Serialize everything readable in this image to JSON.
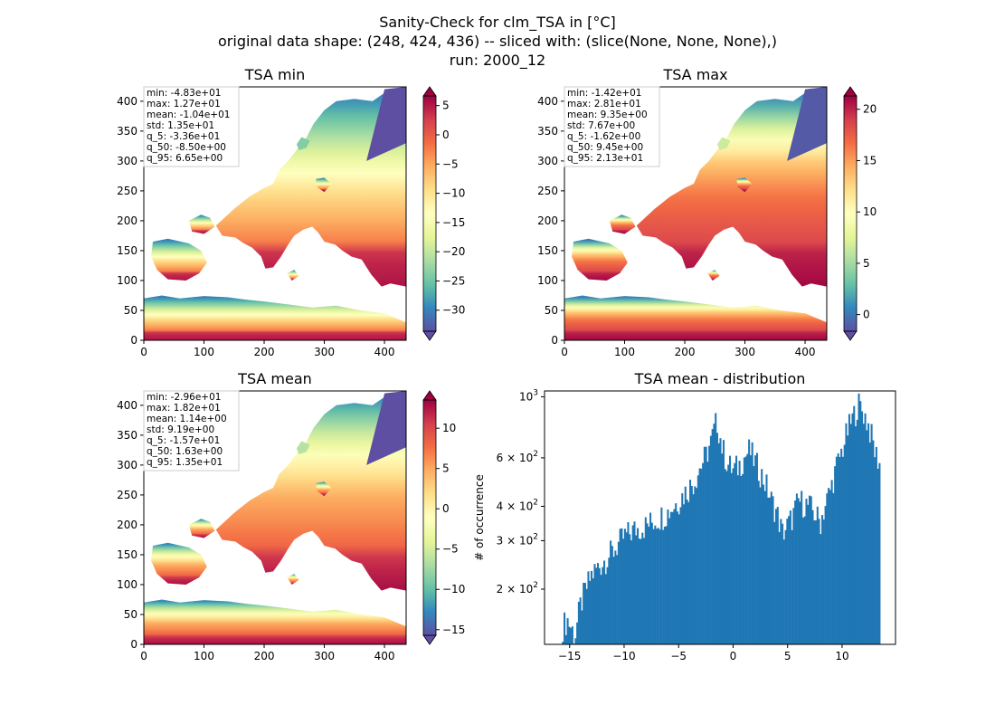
{
  "figure": {
    "title_lines": [
      "Sanity-Check for clm_TSA in [°C]",
      "original data shape: (248, 424, 436) -- sliced with: (slice(None, None, None),)",
      "run: 2000_12"
    ]
  },
  "colormap": [
    "#5e4fa2",
    "#3288bd",
    "#66c2a5",
    "#abdda4",
    "#e6f598",
    "#ffffbf",
    "#fee08b",
    "#fdae61",
    "#f46d43",
    "#d53e4f",
    "#9e0142"
  ],
  "ocean_color": "#ffffff",
  "hist_color": "#1f77b4",
  "chart_data": [
    {
      "type": "heatmap",
      "title": "TSA min",
      "x_ticks": [
        "0",
        "100",
        "200",
        "300",
        "400"
      ],
      "y_ticks": [
        "0",
        "50",
        "100",
        "150",
        "200",
        "250",
        "300",
        "350",
        "400"
      ],
      "xlim": [
        0,
        436
      ],
      "ylim": [
        0,
        424
      ],
      "colorbar": {
        "min": -33.6,
        "max": 6.65,
        "ticks": [
          5,
          0,
          -5,
          -10,
          -15,
          -20,
          -25,
          -30
        ],
        "tick_labels": [
          "5",
          "0",
          "−5",
          "−10",
          "−15",
          "−20",
          "−25",
          "−30"
        ],
        "extend": "both"
      },
      "stats": [
        "min: -4.83e+01",
        "max: 1.27e+01",
        "mean: -1.04e+01",
        "std: 1.35e+01",
        "q_5: -3.36e+01",
        "q_50: -8.50e+00",
        "q_95: 6.65e+00"
      ]
    },
    {
      "type": "heatmap",
      "title": "TSA max",
      "x_ticks": [
        "0",
        "100",
        "200",
        "300",
        "400"
      ],
      "y_ticks": [
        "0",
        "50",
        "100",
        "150",
        "200",
        "250",
        "300",
        "350",
        "400"
      ],
      "xlim": [
        0,
        436
      ],
      "ylim": [
        0,
        424
      ],
      "colorbar": {
        "min": -1.62,
        "max": 21.3,
        "ticks": [
          20,
          15,
          10,
          5,
          0
        ],
        "tick_labels": [
          "20",
          "15",
          "10",
          "5",
          "0"
        ],
        "extend": "both"
      },
      "stats": [
        "min: -1.42e+01",
        "max: 2.81e+01",
        "mean: 9.35e+00",
        "std: 7.67e+00",
        "q_5: -1.62e+00",
        "q_50: 9.45e+00",
        "q_95: 2.13e+01"
      ]
    },
    {
      "type": "heatmap",
      "title": "TSA mean",
      "x_ticks": [
        "0",
        "100",
        "200",
        "300",
        "400"
      ],
      "y_ticks": [
        "0",
        "50",
        "100",
        "150",
        "200",
        "250",
        "300",
        "350",
        "400"
      ],
      "xlim": [
        0,
        436
      ],
      "ylim": [
        0,
        424
      ],
      "colorbar": {
        "min": -15.7,
        "max": 13.5,
        "ticks": [
          10,
          5,
          0,
          -5,
          -10,
          -15
        ],
        "tick_labels": [
          "10",
          "5",
          "0",
          "−5",
          "−10",
          "−15"
        ],
        "extend": "both"
      },
      "stats": [
        "min: -2.96e+01",
        "max: 1.82e+01",
        "mean: 1.14e+00",
        "std: 9.19e+00",
        "q_5: -1.57e+01",
        "q_50: 1.63e+00",
        "q_95: 1.35e+01"
      ]
    },
    {
      "type": "bar",
      "title": "TSA mean - distribution",
      "ylabel": "# of occurrence",
      "yscale": "log",
      "xlim": [
        -17.3,
        14.9
      ],
      "ylim": [
        126,
        1050
      ],
      "x_ticks": [
        -15,
        -10,
        -5,
        0,
        5,
        10
      ],
      "x_tick_labels": [
        "−15",
        "−10",
        "−5",
        "0",
        "5",
        "10"
      ],
      "y_ticks": [
        {
          "value": 200,
          "mantissa": "2",
          "exp": "2"
        },
        {
          "value": 300,
          "mantissa": "3",
          "exp": "2"
        },
        {
          "value": 400,
          "mantissa": "4",
          "exp": "2"
        },
        {
          "value": 600,
          "mantissa": "6",
          "exp": "2"
        },
        {
          "value": 1000,
          "mantissa": "",
          "exp": "3"
        }
      ],
      "bin_range": [
        -15.7,
        13.5
      ],
      "x_knots": [
        -15.7,
        -15.2,
        -14.5,
        -14.0,
        -13.0,
        -12.0,
        -11.0,
        -10.0,
        -9.0,
        -8.0,
        -7.0,
        -6.0,
        -5.0,
        -4.0,
        -3.5,
        -3.0,
        -2.5,
        -2.0,
        -1.5,
        -1.0,
        -0.5,
        0.0,
        0.5,
        1.0,
        1.5,
        2.0,
        3.0,
        3.5,
        4.0,
        4.5,
        5.0,
        5.5,
        6.0,
        7.0,
        8.0,
        9.0,
        9.5,
        10.0,
        10.5,
        11.0,
        11.5,
        12.0,
        12.5,
        13.0,
        13.5
      ],
      "y_knots": [
        145,
        155,
        135,
        175,
        225,
        250,
        275,
        310,
        330,
        340,
        360,
        380,
        420,
        470,
        500,
        560,
        610,
        690,
        820,
        650,
        570,
        540,
        560,
        600,
        640,
        580,
        480,
        420,
        380,
        320,
        340,
        370,
        420,
        400,
        350,
        470,
        560,
        640,
        750,
        840,
        940,
        870,
        770,
        630,
        570
      ]
    }
  ]
}
